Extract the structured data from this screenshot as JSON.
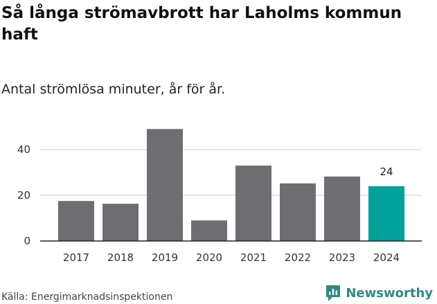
{
  "title": "Så långa strömavbrott har Laholms kommun haft",
  "subtitle": "Antal strömlösa minuter, år för år.",
  "source": "Källa: Energimarknadsinspektionen",
  "brand": "Newsworthy",
  "colors": {
    "bar": "#6e6d72",
    "highlight": "#00a19a",
    "grid": "#dcdcdc",
    "axis": "#222222",
    "brand": "#2e8a80"
  },
  "chart_data": {
    "type": "bar",
    "title": "Så långa strömavbrott har Laholms kommun haft",
    "subtitle": "Antal strömlösa minuter, år för år.",
    "xlabel": "",
    "ylabel": "",
    "categories": [
      "2017",
      "2018",
      "2019",
      "2020",
      "2021",
      "2022",
      "2023",
      "2024"
    ],
    "values": [
      17.5,
      16.3,
      49,
      9,
      33,
      25.2,
      28.2,
      24
    ],
    "highlight_index": 7,
    "data_labels": [
      {
        "index": 7,
        "text": "24"
      }
    ],
    "yticks": [
      0,
      20,
      40
    ],
    "ylim": [
      0,
      50
    ],
    "grid": true
  }
}
